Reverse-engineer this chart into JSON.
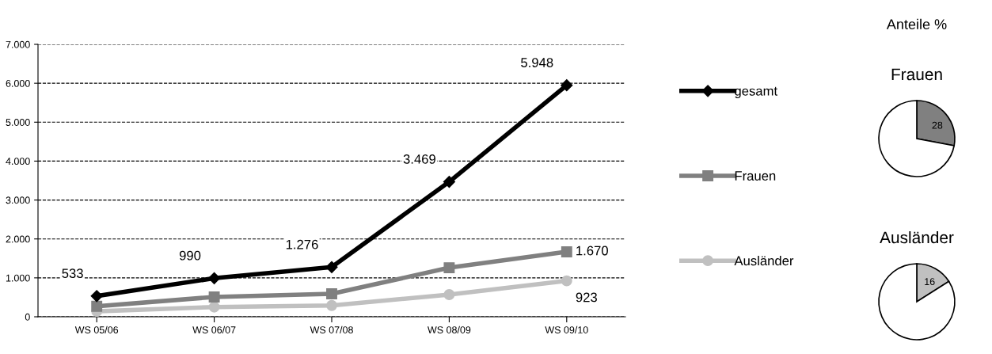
{
  "chart_data": [
    {
      "type": "line",
      "categories": [
        "WS 05/06",
        "WS 06/07",
        "WS 07/08",
        "WS 08/09",
        "WS 09/10"
      ],
      "series": [
        {
          "name": "gesamt",
          "color": "#000000",
          "marker": "diamond",
          "values": [
            533,
            990,
            1276,
            3469,
            5948
          ],
          "value_labels": [
            "533",
            "990",
            "1.276",
            "3.469",
            "5.948"
          ]
        },
        {
          "name": "Frauen",
          "color": "#808080",
          "marker": "square",
          "values": [
            270,
            510,
            590,
            1260,
            1670
          ],
          "value_labels": [
            null,
            null,
            null,
            null,
            "1.670"
          ]
        },
        {
          "name": "Ausländer",
          "color": "#c0c0c0",
          "marker": "circle",
          "values": [
            140,
            250,
            290,
            570,
            923
          ],
          "value_labels": [
            null,
            null,
            null,
            null,
            "923"
          ]
        }
      ],
      "ylim": [
        0,
        7000
      ],
      "yticks": [
        0,
        {
          "value": 1000,
          "label": "1.000"
        },
        {
          "value": 2000,
          "label": "2.000"
        },
        {
          "value": 3000,
          "label": "3.000"
        },
        {
          "value": 4000,
          "label": "4.000"
        },
        {
          "value": 5000,
          "label": "5.000"
        },
        {
          "value": 6000,
          "label": "6.000"
        },
        {
          "value": 7000,
          "label": "7.000"
        }
      ],
      "grid": "y",
      "legend": "right",
      "line_style": "solid"
    },
    {
      "type": "pie",
      "title": "Anteile %",
      "subtitle": "Frauen",
      "categories": [
        null,
        null
      ],
      "values": [
        28,
        72
      ],
      "colors": [
        "#808080",
        "#ffffff"
      ],
      "value_labels": [
        "28",
        null
      ]
    },
    {
      "type": "pie",
      "subtitle": "Ausländer",
      "categories": [
        null,
        null
      ],
      "values": [
        16,
        84
      ],
      "colors": [
        "#c0c0c0",
        "#ffffff"
      ],
      "value_labels": [
        "16",
        null
      ]
    }
  ]
}
